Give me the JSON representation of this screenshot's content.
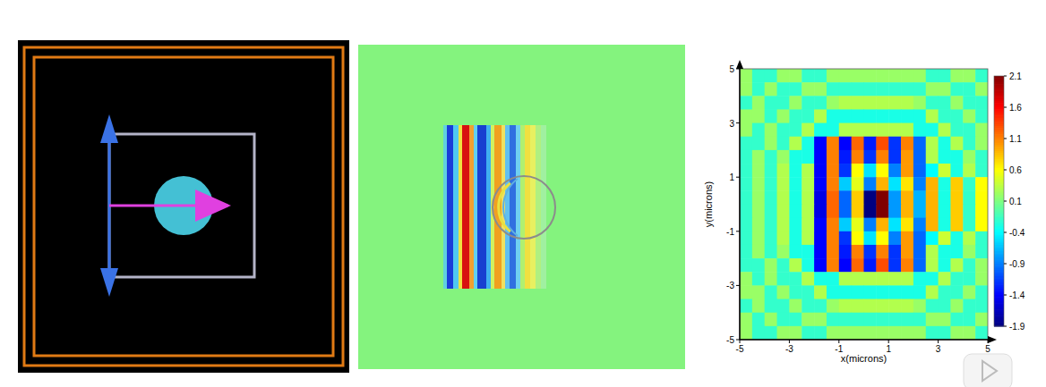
{
  "chart_data": {
    "type": "heatmap",
    "xlabel": "x(microns)",
    "ylabel": "y(microns)",
    "xlim": [
      -5,
      5
    ],
    "ylim": [
      -5,
      5
    ],
    "xticks": [
      -5,
      -3,
      -1,
      1,
      3,
      5
    ],
    "yticks": [
      -5,
      -3,
      -1,
      1,
      3,
      5
    ],
    "x": [
      -4.75,
      -4.25,
      -3.75,
      -3.25,
      -2.75,
      -2.25,
      -1.75,
      -1.25,
      -0.75,
      -0.25,
      0.25,
      0.75,
      1.25,
      1.75,
      2.25,
      2.75,
      3.25,
      3.75,
      4.25,
      4.75
    ],
    "y": [
      4.75,
      4.25,
      3.75,
      3.25,
      2.75,
      2.25,
      1.75,
      1.25,
      0.75,
      0.25,
      -0.25,
      -0.75,
      -1.25,
      -1.75,
      -2.25,
      -2.75,
      -3.25,
      -3.75,
      -4.25,
      -4.75
    ],
    "cells": [
      [
        0.2,
        -0.2,
        -0.2,
        0.2,
        0.2,
        -0.2,
        -0.2,
        0.2,
        0.2,
        0.2,
        0.2,
        0.2,
        0.2,
        0.2,
        0.2,
        -0.2,
        -0.2,
        0.2,
        0.2,
        -0.2
      ],
      [
        0.2,
        -0.2,
        0.2,
        -0.2,
        -0.2,
        0.2,
        0.2,
        -0.2,
        -0.2,
        -0.2,
        -0.2,
        -0.2,
        -0.2,
        -0.2,
        -0.2,
        0.2,
        0.2,
        -0.2,
        -0.2,
        0.2
      ],
      [
        -0.2,
        0.2,
        -0.2,
        -0.2,
        0.2,
        -0.2,
        -0.2,
        0.2,
        0.3,
        0.3,
        0.3,
        0.3,
        0.3,
        0.3,
        0.2,
        -0.2,
        -0.2,
        0.2,
        -0.2,
        -0.2
      ],
      [
        0.2,
        0.2,
        -0.2,
        0.2,
        -0.2,
        -0.2,
        0.3,
        -0.3,
        -0.3,
        -0.3,
        -0.3,
        -0.3,
        -0.3,
        -0.3,
        -0.3,
        0.3,
        -0.2,
        -0.2,
        0.2,
        -0.2
      ],
      [
        0.2,
        -0.2,
        0.2,
        -0.2,
        -0.2,
        0.3,
        -0.3,
        -0.3,
        0.3,
        0.3,
        0.3,
        0.3,
        0.3,
        0.3,
        -0.3,
        -0.3,
        0.3,
        -0.2,
        -0.2,
        0.2
      ],
      [
        -0.2,
        -0.2,
        0.2,
        -0.2,
        0.3,
        -0.3,
        -1.4,
        1.1,
        -1.4,
        1.2,
        -1.3,
        1.3,
        -1.2,
        1.1,
        -1.0,
        0.3,
        -0.3,
        0.3,
        -0.2,
        0.2
      ],
      [
        -0.2,
        0.2,
        -0.2,
        0.2,
        -0.3,
        -0.3,
        -1.4,
        1.1,
        -1.3,
        1.1,
        -1.2,
        1.1,
        -1.2,
        1.0,
        -1.0,
        0.3,
        -0.3,
        -0.3,
        0.2,
        -0.2
      ],
      [
        -0.2,
        0.2,
        -0.2,
        0.3,
        -0.3,
        0.3,
        -1.4,
        1.1,
        -1.2,
        0.6,
        -0.5,
        0.6,
        -0.9,
        1.0,
        -1.0,
        -0.4,
        0.4,
        -0.3,
        0.3,
        -0.2
      ],
      [
        -0.2,
        0.2,
        -0.2,
        0.3,
        -0.3,
        0.3,
        -1.4,
        1.1,
        -0.6,
        0.5,
        -0.9,
        0.9,
        -0.5,
        0.7,
        -0.9,
        0.9,
        -0.3,
        0.8,
        -0.2,
        0.6
      ],
      [
        -0.2,
        0.2,
        -0.2,
        0.3,
        -0.3,
        0.3,
        -1.5,
        1.2,
        -1.0,
        0.8,
        -1.9,
        2.1,
        -0.8,
        0.9,
        -0.7,
        0.9,
        -0.3,
        0.8,
        -0.2,
        0.6
      ],
      [
        -0.2,
        0.2,
        -0.2,
        0.3,
        -0.3,
        0.3,
        -1.5,
        1.2,
        -1.0,
        0.8,
        -1.9,
        2.1,
        -0.8,
        0.9,
        -0.7,
        0.9,
        -0.3,
        0.8,
        -0.2,
        0.6
      ],
      [
        -0.2,
        0.2,
        -0.2,
        0.3,
        -0.3,
        0.3,
        -1.4,
        1.1,
        -0.6,
        0.5,
        -0.9,
        0.9,
        -0.5,
        0.7,
        -0.9,
        0.9,
        -0.3,
        0.8,
        -0.2,
        0.6
      ],
      [
        -0.2,
        0.2,
        -0.2,
        0.3,
        -0.3,
        0.3,
        -1.4,
        1.1,
        -1.2,
        0.6,
        -0.5,
        0.6,
        -0.9,
        1.0,
        -1.0,
        -0.4,
        0.4,
        -0.3,
        0.3,
        -0.2
      ],
      [
        -0.2,
        0.2,
        -0.2,
        0.2,
        -0.3,
        -0.3,
        -1.4,
        1.1,
        -1.3,
        1.1,
        -1.2,
        1.1,
        -1.2,
        1.0,
        -1.0,
        0.3,
        -0.3,
        -0.3,
        0.2,
        -0.2
      ],
      [
        -0.2,
        -0.2,
        0.2,
        -0.2,
        0.3,
        -0.3,
        -1.4,
        1.1,
        -1.4,
        1.2,
        -1.3,
        1.3,
        -1.2,
        1.1,
        -1.0,
        0.3,
        -0.3,
        0.3,
        -0.2,
        0.2
      ],
      [
        0.2,
        -0.2,
        0.2,
        -0.2,
        -0.2,
        0.3,
        -0.3,
        -0.3,
        0.3,
        0.3,
        0.3,
        0.3,
        0.3,
        0.3,
        -0.3,
        -0.3,
        0.3,
        -0.2,
        -0.2,
        0.2
      ],
      [
        0.2,
        0.2,
        -0.2,
        0.2,
        -0.2,
        -0.2,
        0.3,
        -0.3,
        -0.3,
        -0.3,
        -0.3,
        -0.3,
        -0.3,
        -0.3,
        -0.3,
        0.3,
        -0.2,
        -0.2,
        0.2,
        -0.2
      ],
      [
        -0.2,
        0.2,
        -0.2,
        -0.2,
        0.2,
        -0.2,
        -0.2,
        0.2,
        0.3,
        0.3,
        0.3,
        0.3,
        0.3,
        0.3,
        0.2,
        -0.2,
        -0.2,
        0.2,
        -0.2,
        -0.2
      ],
      [
        0.2,
        -0.2,
        0.2,
        -0.2,
        -0.2,
        0.2,
        0.2,
        -0.2,
        -0.2,
        -0.2,
        -0.2,
        -0.2,
        -0.2,
        -0.2,
        -0.2,
        0.2,
        0.2,
        -0.2,
        -0.2,
        0.2
      ],
      [
        0.2,
        -0.2,
        -0.2,
        0.2,
        0.2,
        -0.2,
        -0.2,
        0.2,
        0.2,
        0.2,
        0.2,
        0.2,
        0.2,
        0.2,
        0.2,
        -0.2,
        -0.2,
        0.2,
        0.2,
        -0.2
      ]
    ],
    "color_range": [
      -1.9,
      2.1
    ],
    "color_ticks": [
      2.1,
      1.6,
      1.1,
      0.6,
      0.1,
      -0.4,
      -0.9,
      -1.4,
      -1.9
    ]
  }
}
